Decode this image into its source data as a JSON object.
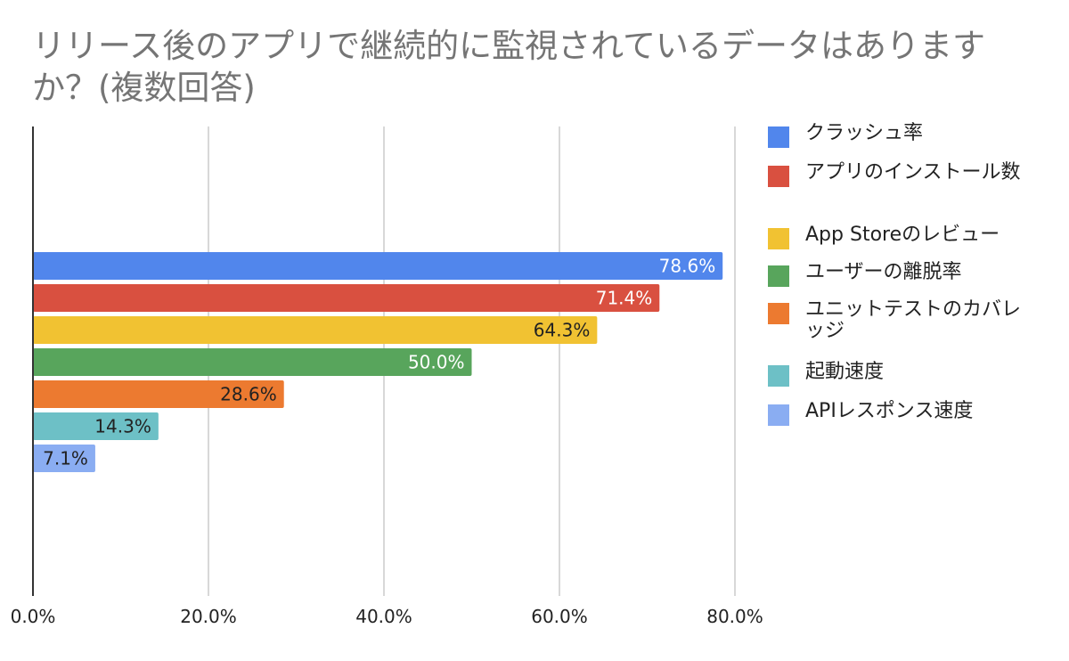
{
  "chart_data": {
    "type": "bar",
    "orientation": "horizontal",
    "title": "リリース後のアプリで継続的に監視されているデータはありますか？(複数回答)",
    "xlabel": "",
    "ylabel": "",
    "xlim": [
      0,
      80
    ],
    "x_ticks": [
      "0.0%",
      "20.0%",
      "40.0%",
      "60.0%",
      "80.0%"
    ],
    "grid": true,
    "legend_position": "right",
    "series": [
      {
        "name": "クラッシュ率",
        "value": 78.6,
        "label": "78.6%",
        "color": "#5186ec",
        "label_color": "#ffffff"
      },
      {
        "name": "アプリのインストール数",
        "value": 71.4,
        "label": "71.4%",
        "color": "#d95040",
        "label_color": "#ffffff"
      },
      {
        "name": "App Storeのレビュー",
        "value": 64.3,
        "label": "64.3%",
        "color": "#f1c232",
        "label_color": "#222222"
      },
      {
        "name": "ユーザーの離脱率",
        "value": 50.0,
        "label": "50.0%",
        "color": "#58a55c",
        "label_color": "#ffffff"
      },
      {
        "name": "ユニットテストのカバレッジ",
        "value": 28.6,
        "label": "28.6%",
        "color": "#ec7a30",
        "label_color": "#222222"
      },
      {
        "name": "起動速度",
        "value": 14.3,
        "label": "14.3%",
        "color": "#6dc0c6",
        "label_color": "#222222"
      },
      {
        "name": "APIレスポンス速度",
        "value": 7.1,
        "label": "7.1%",
        "color": "#8aadf2",
        "label_color": "#222222"
      }
    ]
  }
}
